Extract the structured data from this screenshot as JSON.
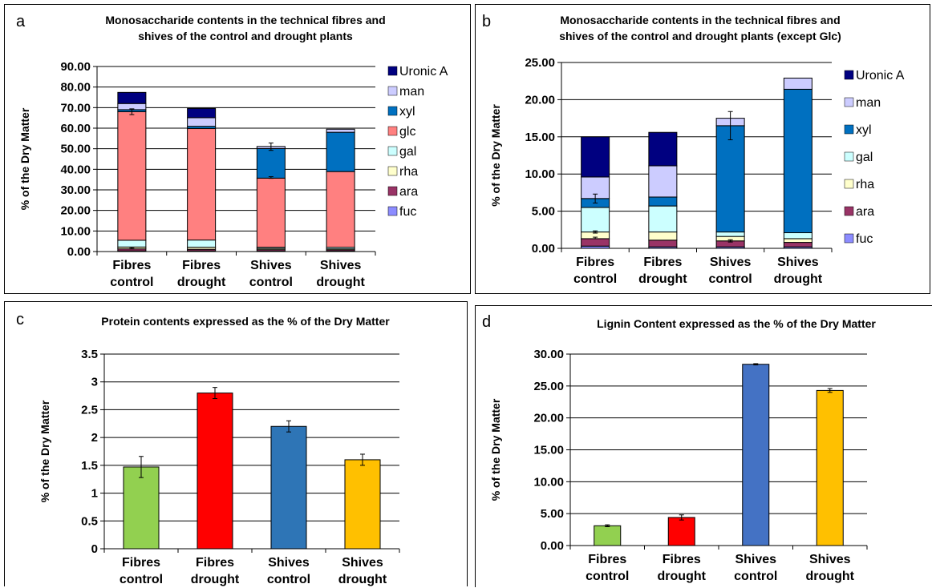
{
  "chart_data": [
    {
      "id": "a",
      "type": "bar",
      "stacked": true,
      "panel_letter": "a",
      "title": [
        "Monosaccharide contents in the technical fibres and",
        "shives of the control and drought plants"
      ],
      "ylabel": "% of the Dry Matter",
      "ylim": [
        0,
        90
      ],
      "ytick_step": 10,
      "ytick_decimals": 2,
      "categories": [
        [
          "Fibres",
          "control"
        ],
        [
          "Fibres",
          "drought"
        ],
        [
          "Shives",
          "control"
        ],
        [
          "Shives",
          "drought"
        ]
      ],
      "legend_position": "right",
      "legend": [
        "Uronic A",
        "man",
        "xyl",
        "glc",
        "gal",
        "rha",
        "ara",
        "fuc"
      ],
      "series": [
        {
          "name": "fuc",
          "color": "#8c8cff",
          "values": [
            0.3,
            0.3,
            0.2,
            0.2
          ]
        },
        {
          "name": "ara",
          "color": "#993366",
          "values": [
            1.0,
            0.8,
            0.7,
            0.6
          ]
        },
        {
          "name": "rha",
          "color": "#ffffcc",
          "values": [
            0.9,
            1.0,
            0.6,
            0.5
          ]
        },
        {
          "name": "gal",
          "color": "#ccffff",
          "values": [
            3.3,
            3.5,
            0.6,
            0.8
          ]
        },
        {
          "name": "glc",
          "color": "#ff8080",
          "values": [
            62.5,
            54.2,
            33.6,
            36.8
          ]
        },
        {
          "name": "xyl",
          "color": "#0070c0",
          "values": [
            1.0,
            1.1,
            14.4,
            19.1
          ]
        },
        {
          "name": "man",
          "color": "#ccccff",
          "values": [
            3.0,
            4.2,
            1.0,
            1.5
          ]
        },
        {
          "name": "Uronic A",
          "color": "#000080",
          "values": [
            5.4,
            4.5,
            0.0,
            0.0
          ]
        }
      ],
      "error_bars": [
        {
          "category": 0,
          "y": 68.0,
          "err": 1.4
        },
        {
          "category": 0,
          "y": 1.6,
          "err": 0.3
        },
        {
          "category": 2,
          "y": 51.0,
          "err": 1.8
        },
        {
          "category": 2,
          "y": 36.0,
          "err": 0.4
        }
      ]
    },
    {
      "id": "b",
      "type": "bar",
      "stacked": true,
      "panel_letter": "b",
      "title": [
        "Monosaccharide contents in the technical fibres and",
        "shives of the control and drought plants (except Glc)"
      ],
      "ylabel": "% of the Dry Matter",
      "ylim": [
        0,
        25
      ],
      "ytick_step": 5,
      "ytick_decimals": 2,
      "categories": [
        [
          "Fibres",
          "control"
        ],
        [
          "Fibres",
          "drought"
        ],
        [
          "Shives",
          "control"
        ],
        [
          "Shives",
          "drought"
        ]
      ],
      "legend_position": "right",
      "legend": [
        "Uronic A",
        "man",
        "xyl",
        "gal",
        "rha",
        "ara",
        "fuc"
      ],
      "series": [
        {
          "name": "fuc",
          "color": "#8c8cff",
          "values": [
            0.3,
            0.2,
            0.2,
            0.2
          ]
        },
        {
          "name": "ara",
          "color": "#993366",
          "values": [
            1.0,
            0.9,
            0.8,
            0.6
          ]
        },
        {
          "name": "rha",
          "color": "#ffffcc",
          "values": [
            0.9,
            1.1,
            0.6,
            0.5
          ]
        },
        {
          "name": "gal",
          "color": "#ccffff",
          "values": [
            3.3,
            3.5,
            0.6,
            0.8
          ]
        },
        {
          "name": "xyl",
          "color": "#0070c0",
          "values": [
            1.2,
            1.2,
            14.3,
            19.3
          ]
        },
        {
          "name": "man",
          "color": "#ccccff",
          "values": [
            2.9,
            4.2,
            1.0,
            1.5
          ]
        },
        {
          "name": "Uronic A",
          "color": "#000080",
          "values": [
            5.4,
            4.5,
            0.0,
            0.0
          ]
        }
      ],
      "error_bars": [
        {
          "category": 0,
          "y": 6.7,
          "err": 0.6
        },
        {
          "category": 0,
          "y": 2.2,
          "err": 0.15
        },
        {
          "category": 0,
          "y": 1.4,
          "err": 0.1
        },
        {
          "category": 2,
          "y": 16.5,
          "err": 1.9
        },
        {
          "category": 2,
          "y": 1.0,
          "err": 0.15
        }
      ]
    },
    {
      "id": "c",
      "type": "bar",
      "stacked": false,
      "panel_letter": "c",
      "title": [
        "Protein contents expressed as the  % of the Dry Matter"
      ],
      "ylabel": "% of the Dry Matter",
      "ylim": [
        0,
        3.5
      ],
      "ytick_step": 0.5,
      "ytick_decimals": -1,
      "categories": [
        [
          "Fibres",
          "control"
        ],
        [
          "Fibres",
          "drought"
        ],
        [
          "Shives",
          "control"
        ],
        [
          "Shives",
          "drought"
        ]
      ],
      "values": [
        1.47,
        2.8,
        2.2,
        1.6
      ],
      "errors": [
        0.19,
        0.1,
        0.1,
        0.1
      ],
      "colors": [
        "#92d050",
        "#ff0000",
        "#2e75b6",
        "#ffc000"
      ]
    },
    {
      "id": "d",
      "type": "bar",
      "stacked": false,
      "panel_letter": "d",
      "title": [
        "Lignin Content expressed as the  % of the Dry Matter"
      ],
      "ylabel": "% of the Dry Matter",
      "ylim": [
        0,
        30
      ],
      "ytick_step": 5,
      "ytick_decimals": 2,
      "categories": [
        [
          "Fibres",
          "control"
        ],
        [
          "Fibres",
          "drought"
        ],
        [
          "Shives",
          "control"
        ],
        [
          "Shives",
          "drought"
        ]
      ],
      "values": [
        3.1,
        4.4,
        28.4,
        24.3
      ],
      "errors": [
        0.15,
        0.4,
        0.1,
        0.3
      ],
      "colors": [
        "#92d050",
        "#ff0000",
        "#4472c4",
        "#ffc000"
      ]
    }
  ]
}
